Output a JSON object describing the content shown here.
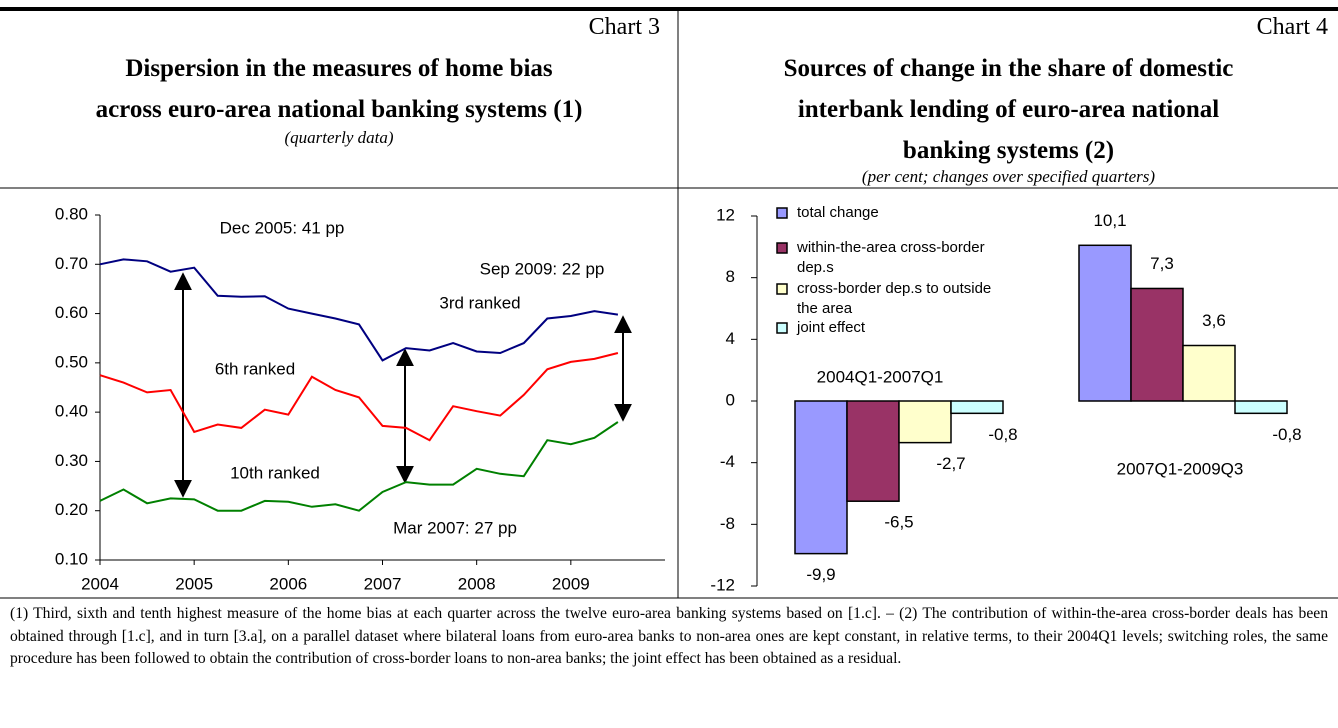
{
  "chart_data": [
    {
      "type": "line",
      "label": "Chart 3",
      "title": "Dispersion in the measures of home bias\nacross euro-area national banking systems (1)",
      "subtitle": "(quarterly data)",
      "x": [
        2004,
        2004.25,
        2004.5,
        2004.75,
        2005,
        2005.25,
        2005.5,
        2005.75,
        2006,
        2006.25,
        2006.5,
        2006.75,
        2007,
        2007.25,
        2007.5,
        2007.75,
        2008,
        2008.25,
        2008.5,
        2008.75,
        2009,
        2009.25,
        2009.5
      ],
      "xlim": [
        2004,
        2010
      ],
      "xticks": [
        2004,
        2005,
        2006,
        2007,
        2008,
        2009
      ],
      "ylim": [
        0.1,
        0.8
      ],
      "yticks": [
        {
          "value": 0.1,
          "label": "0.10"
        },
        {
          "value": 0.2,
          "label": "0.20"
        },
        {
          "value": 0.3,
          "label": "0.30"
        },
        {
          "value": 0.4,
          "label": "0.40"
        },
        {
          "value": 0.5,
          "label": "0.50"
        },
        {
          "value": 0.6,
          "label": "0.60"
        },
        {
          "value": 0.7,
          "label": "0.70"
        },
        {
          "value": 0.8,
          "label": "0.80"
        }
      ],
      "series": [
        {
          "name": "3rd ranked",
          "color": "#000080",
          "values": [
            0.7,
            0.71,
            0.706,
            0.685,
            0.693,
            0.636,
            0.634,
            0.635,
            0.61,
            0.6,
            0.59,
            0.578,
            0.505,
            0.53,
            0.525,
            0.54,
            0.523,
            0.52,
            0.54,
            0.59,
            0.595,
            0.605,
            0.598
          ]
        },
        {
          "name": "6th ranked",
          "color": "#ff0000",
          "values": [
            0.475,
            0.46,
            0.44,
            0.445,
            0.36,
            0.375,
            0.368,
            0.405,
            0.395,
            0.472,
            0.445,
            0.43,
            0.372,
            0.368,
            0.343,
            0.412,
            0.402,
            0.393,
            0.435,
            0.487,
            0.502,
            0.508,
            0.52
          ]
        },
        {
          "name": "10th ranked",
          "color": "#008000",
          "values": [
            0.22,
            0.243,
            0.215,
            0.225,
            0.223,
            0.2,
            0.2,
            0.22,
            0.218,
            0.208,
            0.213,
            0.2,
            0.238,
            0.258,
            0.253,
            0.253,
            0.285,
            0.275,
            0.27,
            0.343,
            0.335,
            0.348,
            0.38
          ]
        }
      ],
      "annotations": [
        "Dec 2005: 41 pp",
        "Sep 2009: 22 pp",
        "Mar 2007: 27 pp"
      ]
    },
    {
      "type": "bar",
      "label": "Chart 4",
      "title": "Sources of change in the share of domestic\ninterbank lending of euro-area national\nbanking systems (2)",
      "subtitle": "(per cent; changes over specified quarters)",
      "categories": [
        "2004Q1-2007Q1",
        "2007Q1-2009Q3"
      ],
      "ylim": [
        -12,
        12
      ],
      "yticks": [
        -12,
        -8,
        -4,
        0,
        4,
        8,
        12
      ],
      "legend": "top-left",
      "series": [
        {
          "name": "total change",
          "color": "#9999ff",
          "values": [
            -9.9,
            10.1
          ],
          "value_labels": [
            "-9,9",
            "10,1"
          ]
        },
        {
          "name": "within-the-area cross-border dep.s",
          "color": "#993366",
          "values": [
            -6.5,
            7.3
          ],
          "value_labels": [
            "-6,5",
            "7,3"
          ]
        },
        {
          "name": "cross-border dep.s to outside the area",
          "color": "#ffffcc",
          "values": [
            -2.7,
            3.6
          ],
          "value_labels": [
            "-2,7",
            "3,6"
          ]
        },
        {
          "name": "joint effect",
          "color": "#ccffff",
          "values": [
            -0.8,
            -0.8
          ],
          "value_labels": [
            "-0,8",
            "-0,8"
          ]
        }
      ]
    }
  ],
  "footnote": "(1) Third, sixth and tenth highest measure of the home bias at each quarter across the twelve euro-area banking systems based on [1.c]. – (2) The contribution of within-the-area cross-border deals has been obtained through [1.c], and in turn [3.a], on a parallel dataset where bilateral loans from euro-area banks to non-area ones are kept constant, in relative terms, to their 2004Q1 levels; switching roles, the same procedure has been followed to obtain the contribution of cross-border loans to non-area banks; the joint effect has been obtained as a residual."
}
